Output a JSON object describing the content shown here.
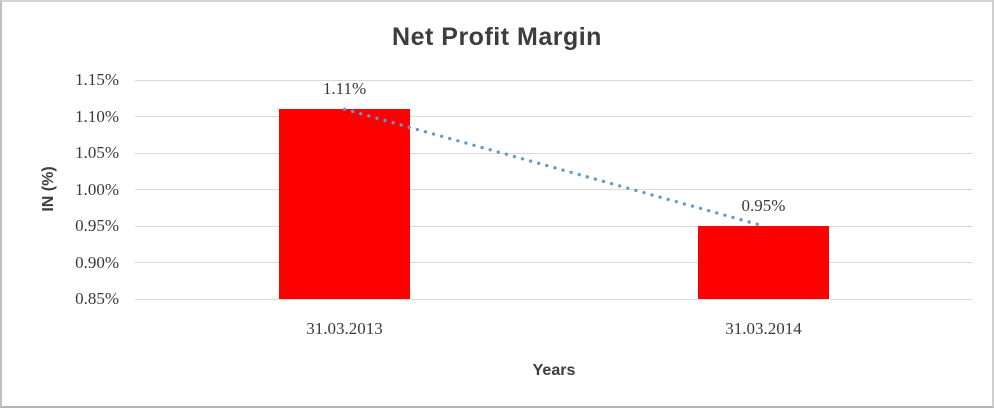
{
  "chart_data": {
    "type": "bar",
    "title": "Net Profit Margin",
    "xlabel": "Years",
    "ylabel": "IN (%)",
    "categories": [
      "31.03.2013",
      "31.03.2014"
    ],
    "values": [
      1.11,
      0.95
    ],
    "data_labels": [
      "1.11%",
      "0.95%"
    ],
    "ylim": [
      0.85,
      1.15
    ],
    "ytick_step": 0.05,
    "ytick_decimals": 2,
    "ytick_suffix": "%",
    "grid": true,
    "legend": "none",
    "bar_color": "#ff0000",
    "grid_color": "#d9d9d9",
    "text_color": "#3d3d3d",
    "trendline": {
      "type": "linear",
      "style": "dotted",
      "color": "#5b9bd5",
      "from_point": [
        0,
        1.11
      ],
      "to_point": [
        1,
        0.95
      ]
    }
  }
}
